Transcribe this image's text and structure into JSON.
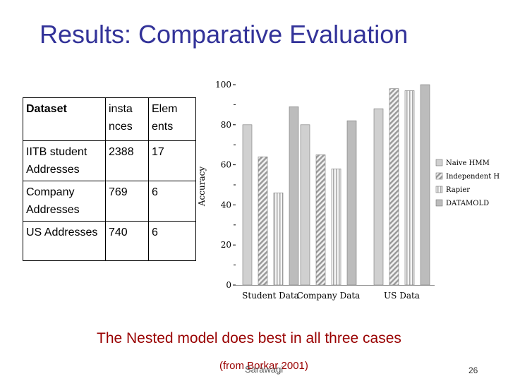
{
  "slide": {
    "title": "Results: Comparative Evaluation",
    "caption": "The Nested model does best in all three cases",
    "source": "(from Borkar 2001)",
    "author": "Sarawagi",
    "page_number": "26"
  },
  "table": {
    "headers": [
      "Dataset",
      "insta nces",
      "Elem ents"
    ],
    "rows": [
      [
        "IITB student Addresses",
        "2388",
        "17"
      ],
      [
        "Company Addresses",
        "769",
        "6"
      ],
      [
        "US Addresses",
        "740",
        "6"
      ]
    ]
  },
  "chart_data": {
    "type": "bar",
    "ylabel": "Accuracy",
    "ylim": [
      0,
      100
    ],
    "yticks": [
      "0",
      "20",
      "40",
      "60",
      "80",
      "100"
    ],
    "categories": [
      "Student Data",
      "Company Data",
      "US Data"
    ],
    "series": [
      {
        "name": "Naive HMM",
        "values": [
          80,
          80,
          88
        ],
        "color": "#d0d0d0",
        "pattern": "solid-light"
      },
      {
        "name": "Independent HMM",
        "values": [
          64,
          65,
          98
        ],
        "color": "#cfcfcf",
        "pattern": "diagonal"
      },
      {
        "name": "Rapier",
        "values": [
          46,
          58,
          97
        ],
        "color": "#e0e0e0",
        "pattern": "vertical"
      },
      {
        "name": "DATAMOLD",
        "values": [
          89,
          82,
          100
        ],
        "color": "#bcbcbc",
        "pattern": "solid-dark"
      }
    ],
    "legend_position": "right",
    "grid": false
  }
}
